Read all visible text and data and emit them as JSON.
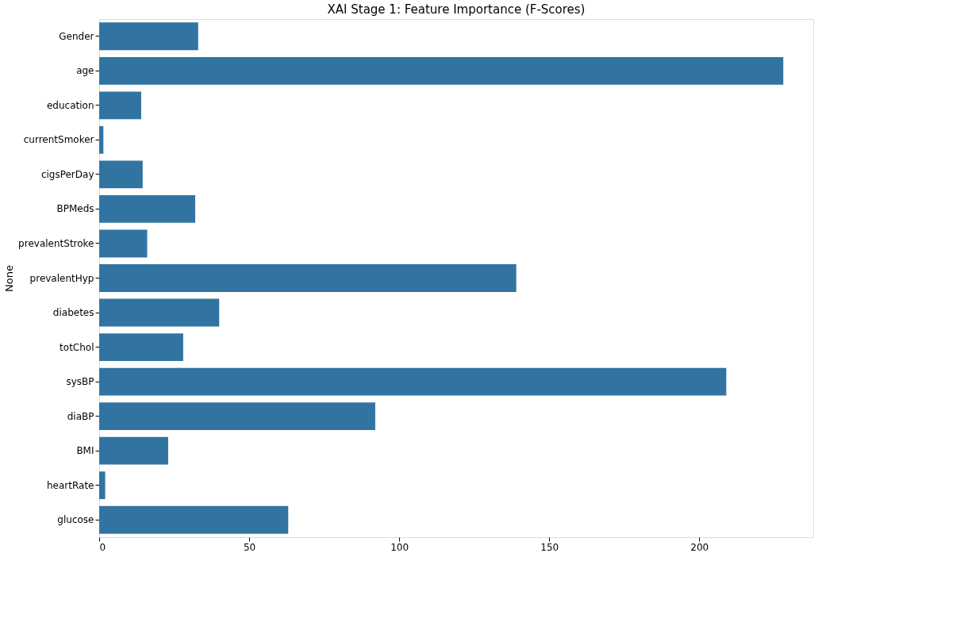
{
  "chart_data": {
    "type": "bar",
    "orientation": "horizontal",
    "title": "XAI Stage 1: Feature Importance (F-Scores)",
    "ylabel": "None",
    "categories": [
      "Gender",
      "age",
      "education",
      "currentSmoker",
      "cigsPerDay",
      "BPMeds",
      "prevalentStroke",
      "prevalentHyp",
      "diabetes",
      "totChol",
      "sysBP",
      "diaBP",
      "BMI",
      "heartRate",
      "glucose"
    ],
    "values": [
      33,
      228,
      14,
      1.4,
      14.5,
      32,
      16,
      139,
      40,
      28,
      209,
      92,
      23,
      2,
      63
    ],
    "color": "#3274a1",
    "xlim": [
      0,
      238
    ],
    "xticks": [
      0,
      50,
      100,
      150,
      200
    ],
    "grid": false
  }
}
